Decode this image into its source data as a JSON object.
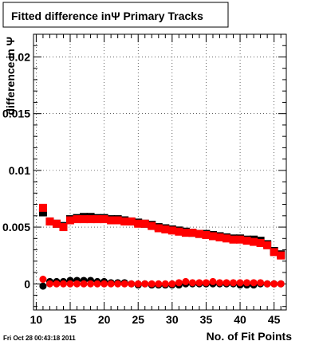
{
  "chart_data": {
    "type": "scatter",
    "title": "Fitted difference inΨ  Primary Tracks",
    "xlabel": "No. of Fit Points",
    "ylabel": "difference in Ψ",
    "xlim": [
      9.6,
      46.8
    ],
    "ylim": [
      -0.0023,
      0.022
    ],
    "x_ticks": [
      "10",
      "15",
      "20",
      "25",
      "30",
      "35",
      "40",
      "45"
    ],
    "y_ticks": [
      "0",
      "0.005",
      "0.01",
      "0.015",
      "0.02"
    ],
    "y_tick_values": [
      0,
      0.005,
      0.01,
      0.015,
      0.02
    ],
    "x_tick_values": [
      10,
      15,
      20,
      25,
      30,
      35,
      40,
      45
    ],
    "grid": true,
    "timestamp": "Fri Oct 28 00:43:18 2011",
    "series": [
      {
        "color": "#000000",
        "marker": "square",
        "x": [
          11,
          12,
          13,
          14,
          15,
          16,
          17,
          18,
          19,
          20,
          21,
          22,
          23,
          24,
          25,
          26,
          27,
          28,
          29,
          30,
          31,
          32,
          33,
          34,
          35,
          36,
          37,
          38,
          39,
          40,
          41,
          42,
          43,
          44,
          45,
          46
        ],
        "y": [
          0.0063,
          0.0055,
          0.0053,
          0.0051,
          0.0057,
          0.0058,
          0.0059,
          0.0059,
          0.0058,
          0.0058,
          0.0057,
          0.0057,
          0.0056,
          0.0055,
          0.0054,
          0.0053,
          0.0052,
          0.005,
          0.0049,
          0.0048,
          0.0047,
          0.0046,
          0.0045,
          0.0044,
          0.0044,
          0.0043,
          0.0042,
          0.0041,
          0.004,
          0.004,
          0.0039,
          0.0039,
          0.0038,
          0.0035,
          0.0029,
          0.0026
        ]
      },
      {
        "color": "#ff0000",
        "marker": "square",
        "x": [
          11,
          12,
          13,
          14,
          15,
          16,
          17,
          18,
          19,
          20,
          21,
          22,
          23,
          24,
          25,
          26,
          27,
          28,
          29,
          30,
          31,
          32,
          33,
          34,
          35,
          36,
          37,
          38,
          39,
          40,
          41,
          42,
          43,
          44,
          45,
          46
        ],
        "y": [
          0.0067,
          0.0055,
          0.0053,
          0.005,
          0.0056,
          0.0057,
          0.0057,
          0.0057,
          0.0057,
          0.0057,
          0.0056,
          0.0056,
          0.0055,
          0.0055,
          0.0053,
          0.0053,
          0.0051,
          0.0049,
          0.0048,
          0.0047,
          0.0046,
          0.0045,
          0.0045,
          0.0044,
          0.0043,
          0.0042,
          0.0041,
          0.004,
          0.0039,
          0.0039,
          0.0038,
          0.0037,
          0.0036,
          0.0034,
          0.0028,
          0.0025
        ]
      },
      {
        "color": "#000000",
        "marker": "circle",
        "x": [
          11,
          12,
          13,
          14,
          15,
          16,
          17,
          18,
          19,
          20,
          21,
          22,
          23,
          24,
          25,
          26,
          27,
          28,
          29,
          30,
          31,
          32,
          33,
          34,
          35,
          36,
          37,
          38,
          39,
          40,
          41,
          42,
          43,
          44,
          45,
          46
        ],
        "y": [
          -0.0002,
          0.0002,
          0.0002,
          0.0002,
          0.0003,
          0.0003,
          0.0003,
          0.0003,
          0.0002,
          0.0002,
          0.0001,
          0.0001,
          0.0001,
          0.0,
          -0.0001,
          0.0,
          -0.0001,
          -0.0001,
          -0.0001,
          -0.0001,
          -0.0001,
          0.0,
          0.0,
          0.0,
          0.0,
          0.0,
          0.0,
          0.0,
          0.0,
          -0.0001,
          -0.0001,
          -0.0001,
          0.0,
          0.0,
          0.0,
          0.0
        ]
      },
      {
        "color": "#ff0000",
        "marker": "circle",
        "x": [
          11,
          12,
          13,
          14,
          15,
          16,
          17,
          18,
          19,
          20,
          21,
          22,
          23,
          24,
          25,
          26,
          27,
          28,
          29,
          30,
          31,
          32,
          33,
          34,
          35,
          36,
          37,
          38,
          39,
          40,
          41,
          42,
          43,
          44,
          45,
          46
        ],
        "y": [
          0.0004,
          0.0,
          0.0,
          0.0,
          0.0,
          0.0,
          0.0,
          0.0,
          0.0,
          0.0,
          0.0,
          0.0,
          0.0,
          0.0,
          0.0,
          0.0,
          0.0,
          0.0,
          0.0,
          0.0,
          0.0001,
          0.0002,
          0.0001,
          0.0001,
          0.0001,
          0.0002,
          0.0001,
          0.0001,
          0.0001,
          0.0001,
          0.0001,
          0.0001,
          0.0001,
          0.0,
          0.0,
          0.0
        ]
      }
    ]
  }
}
